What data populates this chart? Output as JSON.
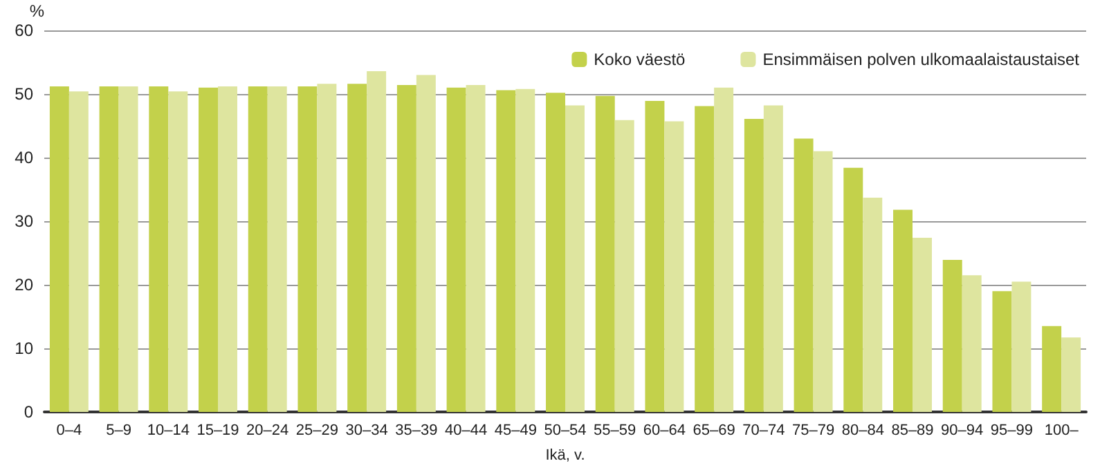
{
  "chart_data": {
    "type": "bar",
    "ylabel": "%",
    "xlabel": "Ikä, v.",
    "categories": [
      "0–4",
      "5–9",
      "10–14",
      "15–19",
      "20–24",
      "25–29",
      "30–34",
      "35–39",
      "40–44",
      "45–49",
      "50–54",
      "55–59",
      "60–64",
      "65–69",
      "70–74",
      "75–79",
      "80–84",
      "85–89",
      "90–94",
      "95–99",
      "100–"
    ],
    "series": [
      {
        "name": "Koko väestö",
        "color": "#c3d14b",
        "values": [
          51.2,
          51.2,
          51.2,
          51.0,
          51.2,
          51.2,
          51.6,
          51.4,
          51.0,
          50.6,
          50.2,
          49.7,
          48.9,
          48.1,
          46.1,
          43.0,
          38.4,
          31.8,
          23.9,
          19.0,
          13.5
        ]
      },
      {
        "name": "Ensimmäisen polven ulkomaalaistaustaiset",
        "color": "#dee59f",
        "values": [
          50.4,
          51.2,
          50.4,
          51.2,
          51.2,
          51.6,
          53.6,
          53.0,
          51.4,
          50.8,
          48.2,
          45.9,
          45.7,
          51.0,
          48.2,
          41.0,
          33.7,
          27.4,
          21.5,
          20.5,
          11.7
        ]
      }
    ],
    "ylim": [
      0,
      60
    ],
    "yticks": [
      0,
      10,
      20,
      30,
      40,
      50,
      60
    ],
    "grid": "y",
    "legend": "top right"
  }
}
